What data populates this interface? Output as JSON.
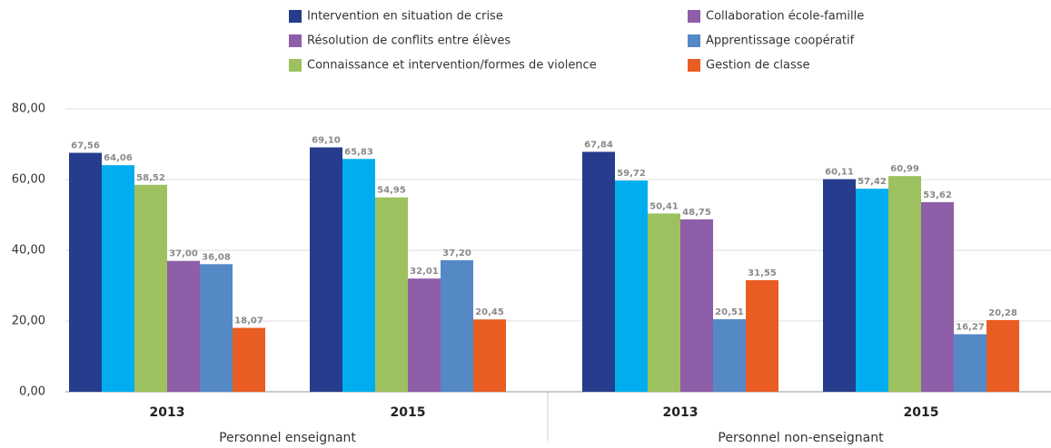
{
  "chart_data": {
    "type": "bar",
    "categories": [
      "2013",
      "2015",
      "2013",
      "2015"
    ],
    "group_labels": [
      "Personnel enseignant",
      "Personnel non-enseignant"
    ],
    "ylim": [
      0,
      80
    ],
    "yticks": [
      {
        "value": 0,
        "label": "0,00"
      },
      {
        "value": 20,
        "label": "20,00"
      },
      {
        "value": 40,
        "label": "40,00"
      },
      {
        "value": 60,
        "label": "60,00"
      },
      {
        "value": 80,
        "label": "80,00"
      }
    ],
    "grid": true,
    "legend": "top",
    "series": [
      {
        "name": "Intervention en situation de crise",
        "color": "#253d8c",
        "legend_color": "#253d8c",
        "values": [
          67.56,
          69.1,
          67.84,
          60.11
        ],
        "value_labels": [
          "67,56",
          "69,10",
          "67,84",
          "60,11"
        ]
      },
      {
        "name": "Collaboration école-famille",
        "color": "#00aeef",
        "legend_color": "#8e5ea8",
        "values": [
          64.06,
          65.83,
          59.72,
          57.42
        ],
        "value_labels": [
          "64,06",
          "65,83",
          "59,72",
          "57,42"
        ]
      },
      {
        "name": "Connaissance et intervention/formes de violence",
        "color": "#9dc15e",
        "legend_color": "#9dc15e",
        "values": [
          58.52,
          54.95,
          50.41,
          60.99
        ],
        "value_labels": [
          "58,52",
          "54,95",
          "50,41",
          "60,99"
        ]
      },
      {
        "name": "Résolution de conflits entre élèves",
        "color": "#8e5ea8",
        "legend_color": "#8e5ea8",
        "values": [
          37.0,
          32.01,
          48.75,
          53.62
        ],
        "value_labels": [
          "37,00",
          "32,01",
          "48,75",
          "53,62"
        ]
      },
      {
        "name": "Apprentissage coopératif",
        "color": "#5589c6",
        "legend_color": "#5589c6",
        "values": [
          36.08,
          37.2,
          20.51,
          16.27
        ],
        "value_labels": [
          "36,08",
          "37,20",
          "20,51",
          "16,27"
        ]
      },
      {
        "name": "Gestion de classe",
        "color": "#e95d22",
        "legend_color": "#e95d22",
        "values": [
          18.07,
          20.45,
          31.55,
          20.28
        ],
        "value_labels": [
          "18,07",
          "20,45",
          "31,55",
          "20,28"
        ]
      }
    ]
  }
}
